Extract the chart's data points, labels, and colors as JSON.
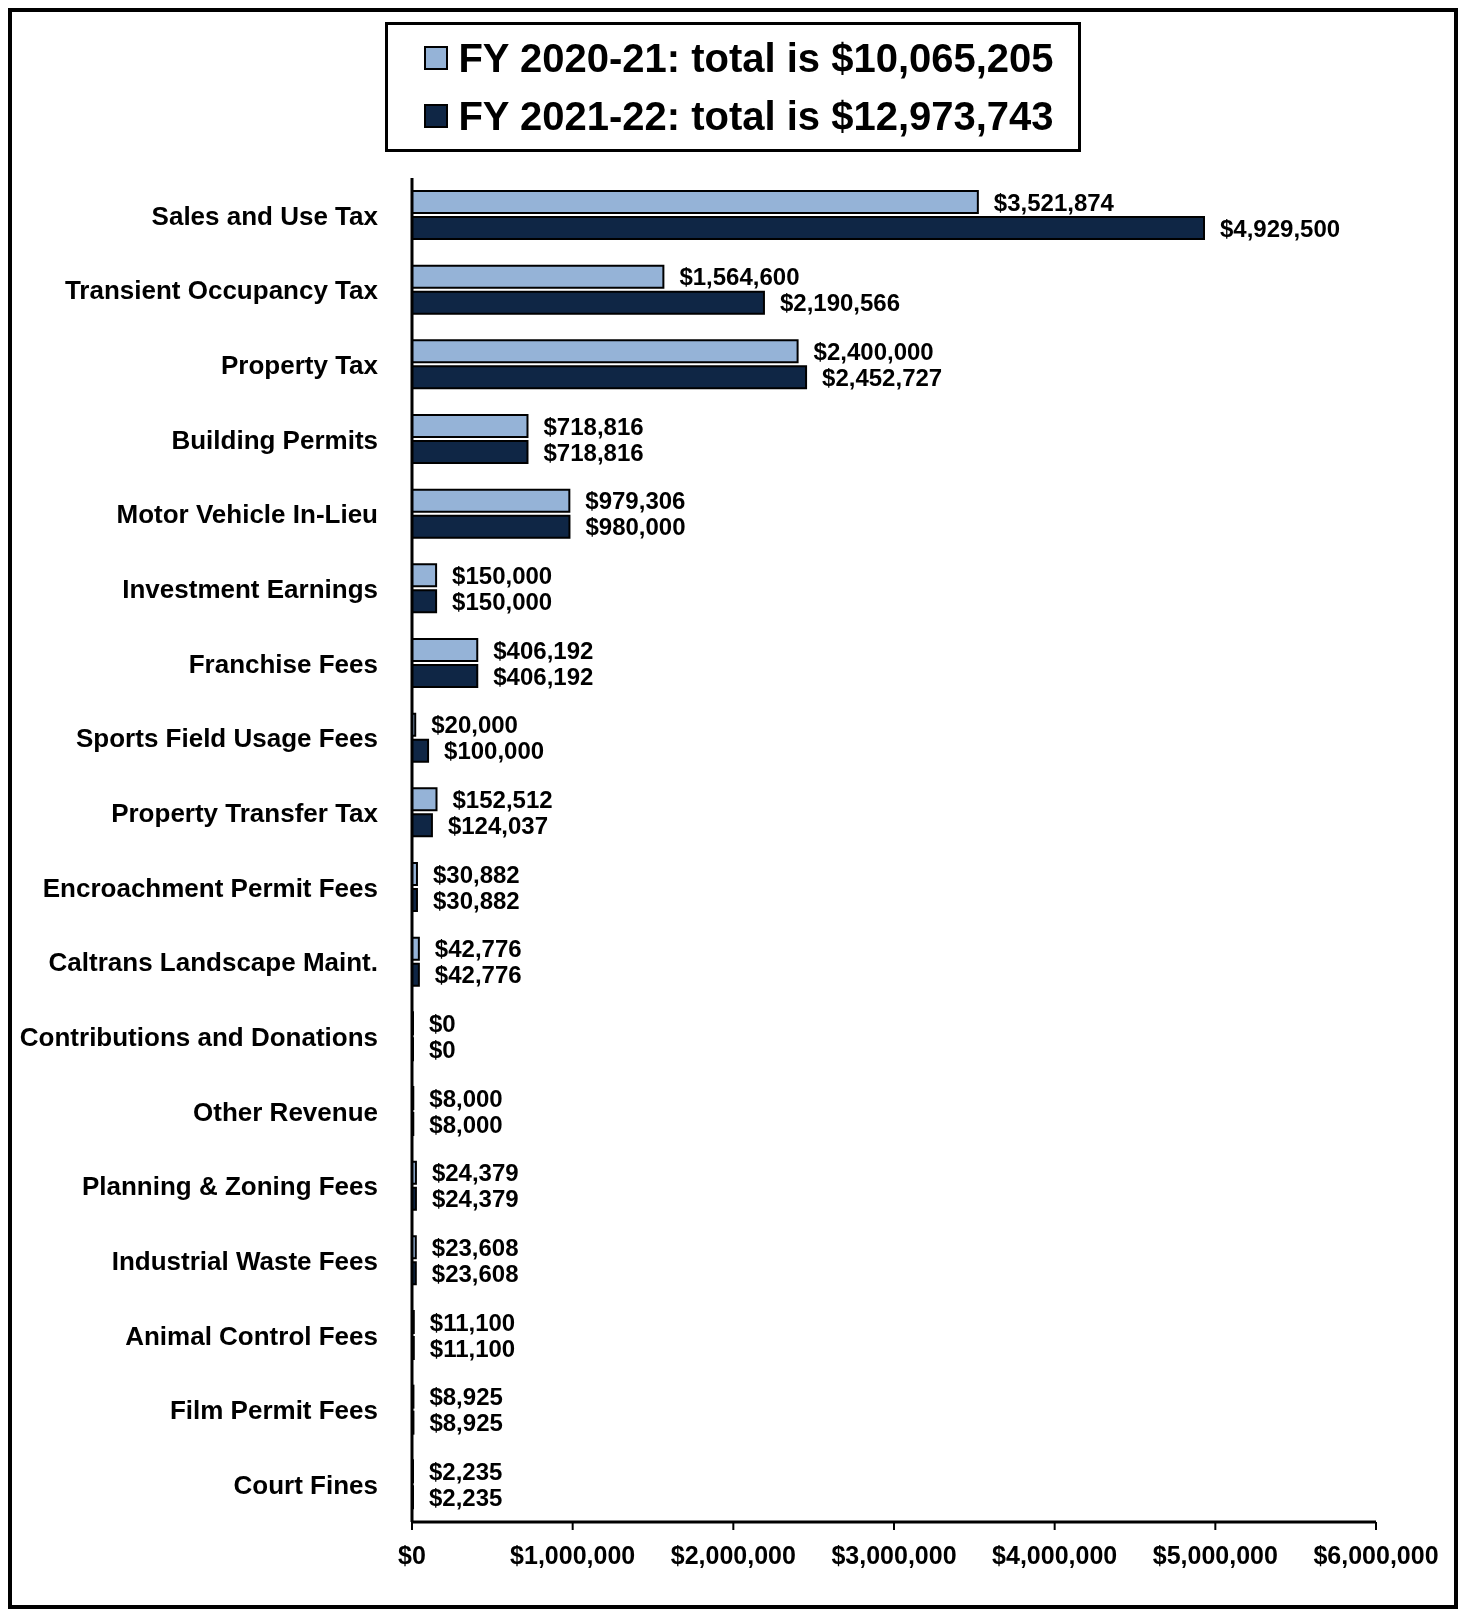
{
  "chart_data": {
    "type": "bar",
    "orientation": "horizontal",
    "categories": [
      "Sales and Use Tax",
      "Transient Occupancy Tax",
      "Property Tax",
      "Building Permits",
      "Motor Vehicle In-Lieu",
      "Investment Earnings",
      "Franchise Fees",
      "Sports Field Usage Fees",
      "Property Transfer Tax",
      "Encroachment Permit Fees",
      "Caltrans Landscape Maint.",
      "Contributions and Donations",
      "Other Revenue",
      "Planning & Zoning Fees",
      "Industrial Waste Fees",
      "Animal Control Fees",
      "Film Permit Fees",
      "Court Fines"
    ],
    "series": [
      {
        "name": "FY 2020-21: total is $10,065,205",
        "color": "#95b3d7",
        "values": [
          3521874,
          1564600,
          2400000,
          718816,
          979306,
          150000,
          406192,
          20000,
          152512,
          30882,
          42776,
          0,
          8000,
          24379,
          23608,
          11100,
          8925,
          2235
        ],
        "value_labels": [
          "$3,521,874",
          "$1,564,600",
          "$2,400,000",
          "$718,816",
          "$979,306",
          "$150,000",
          "$406,192",
          "$20,000",
          "$152,512",
          "$30,882",
          "$42,776",
          "$0",
          "$8,000",
          "$24,379",
          "$23,608",
          "$11,100",
          "$8,925",
          "$2,235"
        ]
      },
      {
        "name": "FY 2021-22: total is $12,973,743",
        "color": "#0f2645",
        "values": [
          4929500,
          2190566,
          2452727,
          718816,
          980000,
          150000,
          406192,
          100000,
          124037,
          30882,
          42776,
          0,
          8000,
          24379,
          23608,
          11100,
          8925,
          2235
        ],
        "value_labels": [
          "$4,929,500",
          "$2,190,566",
          "$2,452,727",
          "$718,816",
          "$980,000",
          "$150,000",
          "$406,192",
          "$100,000",
          "$124,037",
          "$30,882",
          "$42,776",
          "$0",
          "$8,000",
          "$24,379",
          "$23,608",
          "$11,100",
          "$8,925",
          "$2,235"
        ]
      }
    ],
    "xlim": [
      0,
      6000000
    ],
    "xticks": [
      {
        "value": 0,
        "label": "$0"
      },
      {
        "value": 1000000,
        "label": "$1,000,000"
      },
      {
        "value": 2000000,
        "label": "$2,000,000"
      },
      {
        "value": 3000000,
        "label": "$3,000,000"
      },
      {
        "value": 4000000,
        "label": "$4,000,000"
      },
      {
        "value": 5000000,
        "label": "$5,000,000"
      },
      {
        "value": 6000000,
        "label": "$6,000,000"
      }
    ],
    "legend": "top",
    "grid": false
  }
}
